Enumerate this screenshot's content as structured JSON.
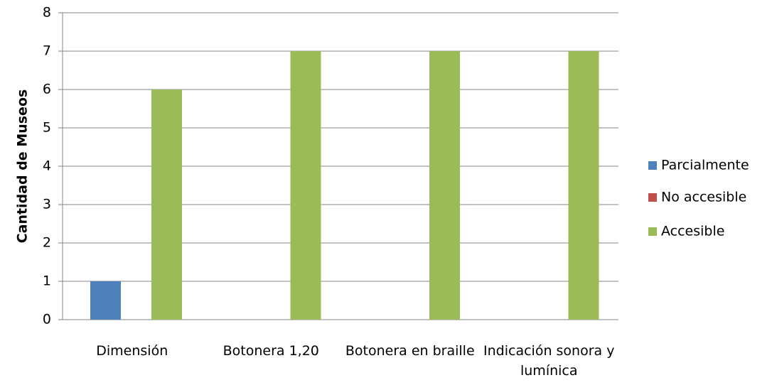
{
  "chart_data": {
    "type": "bar",
    "y_label": "Cantidad de Museos",
    "categories": [
      "Dimensión",
      "Botonera 1,20",
      "Botonera en braille",
      "Indicación sonora y lumínica"
    ],
    "series": [
      {
        "name": "Parcialmente",
        "color": "#4f81bd",
        "values": [
          1,
          0,
          0,
          0
        ]
      },
      {
        "name": "No accesible",
        "color": "#c0504d",
        "values": [
          0,
          0,
          0,
          0
        ]
      },
      {
        "name": "Accesible",
        "color": "#9bbb59",
        "values": [
          6,
          7,
          7,
          7
        ]
      }
    ],
    "ylim": [
      0,
      8
    ],
    "yticks": [
      0,
      1,
      2,
      3,
      4,
      5,
      6,
      7,
      8
    ],
    "grid": true,
    "legend": "right"
  }
}
